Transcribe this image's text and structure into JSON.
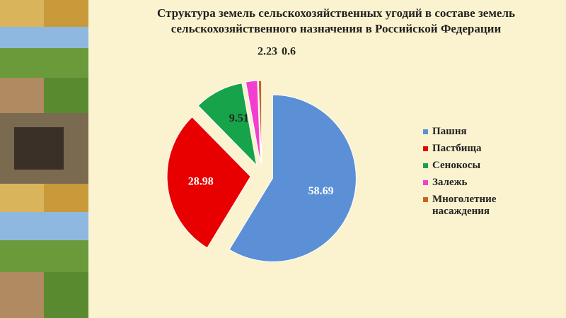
{
  "chart_data": {
    "type": "pie",
    "title": "Структура земель сельскохозяйственных угодий в составе земель сельскохозяйственного назначения в Российской Федерации",
    "categories": [
      "Пашня",
      "Пастбища",
      "Сенокосы",
      "Залежь",
      "Многолетние насаждения"
    ],
    "values": [
      58.69,
      28.98,
      9.51,
      2.23,
      0.6
    ],
    "colors": [
      "#5b8fd6",
      "#e80000",
      "#17a34a",
      "#f23fcf",
      "#c8641e"
    ],
    "legend": "right"
  }
}
